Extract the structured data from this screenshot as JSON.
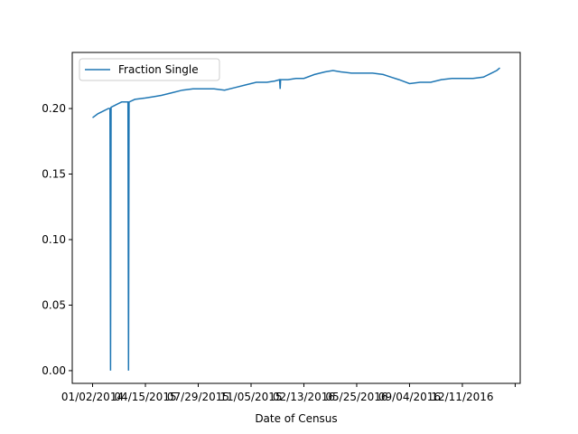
{
  "chart_data": {
    "type": "line",
    "xlabel": "Date of Census",
    "x": [
      0,
      10,
      20,
      30,
      33,
      34,
      35,
      45,
      55,
      67,
      68,
      69,
      80,
      100,
      115,
      130,
      150,
      170,
      190,
      210,
      230,
      250,
      270,
      290,
      310,
      330,
      345,
      354,
      355,
      356,
      370,
      385,
      400,
      420,
      440,
      455,
      470,
      490,
      510,
      530,
      550,
      565,
      580,
      600,
      620,
      640,
      660,
      680,
      700,
      720,
      740,
      755,
      765,
      771
    ],
    "series": [
      {
        "name": "Fraction Single",
        "color": "#1f77b4",
        "values": [
          0.193,
          0.196,
          0.198,
          0.2,
          0.2,
          0.0,
          0.201,
          0.203,
          0.205,
          0.205,
          0.0,
          0.205,
          0.207,
          0.208,
          0.209,
          0.21,
          0.212,
          0.214,
          0.215,
          0.215,
          0.215,
          0.214,
          0.216,
          0.218,
          0.22,
          0.22,
          0.221,
          0.222,
          0.215,
          0.222,
          0.222,
          0.223,
          0.223,
          0.226,
          0.228,
          0.229,
          0.228,
          0.227,
          0.227,
          0.227,
          0.226,
          0.224,
          0.222,
          0.219,
          0.22,
          0.22,
          0.222,
          0.223,
          0.223,
          0.223,
          0.224,
          0.227,
          0.229,
          0.231
        ]
      }
    ],
    "xlim": [
      -38.5,
      809.5
    ],
    "xticks": [
      {
        "value": 0,
        "label": "01/02/2014"
      },
      {
        "value": 100,
        "label": "04/15/2015"
      },
      {
        "value": 200,
        "label": "07/29/2015"
      },
      {
        "value": 300,
        "label": "11/05/2015"
      },
      {
        "value": 400,
        "label": "02/13/2016"
      },
      {
        "value": 500,
        "label": "05/25/2016"
      },
      {
        "value": 600,
        "label": "09/04/2016"
      },
      {
        "value": 700,
        "label": "12/11/2016"
      },
      {
        "value": 800,
        "label": ""
      }
    ],
    "ylim": [
      -0.0097,
      0.2428
    ],
    "yticks": [
      {
        "value": 0,
        "label": "0.00"
      },
      {
        "value": 0.05,
        "label": "0.05"
      },
      {
        "value": 0.1,
        "label": "0.10"
      },
      {
        "value": 0.15,
        "label": "0.15"
      },
      {
        "value": 0.2,
        "label": "0.20"
      }
    ],
    "legend": "upper left"
  }
}
